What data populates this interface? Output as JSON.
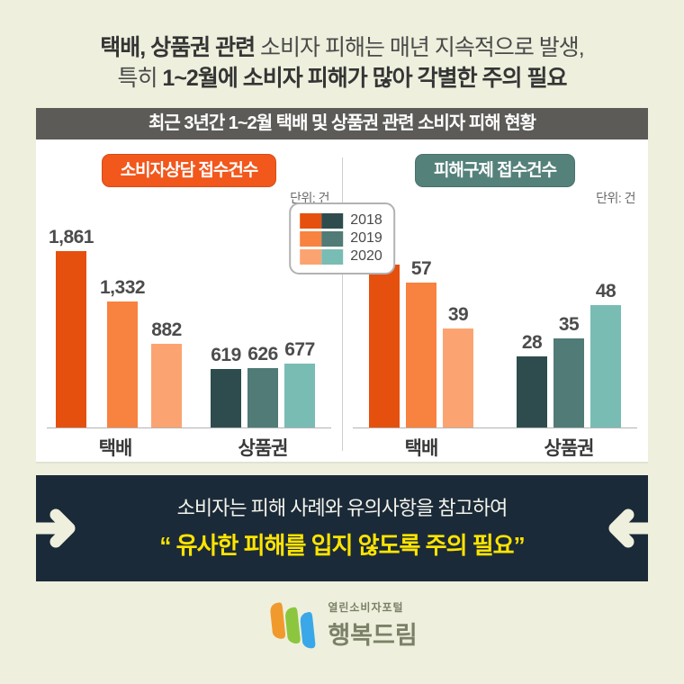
{
  "header": {
    "line1_bold": "택배, 상품권 관련",
    "line1_rest": " 소비자 피해는 매년 지속적으로 발생,",
    "line2_light": "특히 ",
    "line2_bold": "1~2월에 소비자 피해가 많아 각별한 주의 필요"
  },
  "panel": {
    "title": "최근 3년간 1~2월 택배 및 상품권 관련 소비자 피해 현황"
  },
  "chart_data": [
    {
      "type": "bar",
      "title": "소비자상담 접수건수",
      "unit_label": "단위: 건",
      "categories": [
        "택배",
        "상품권"
      ],
      "series": [
        {
          "name": "2018",
          "values": [
            1861,
            619
          ]
        },
        {
          "name": "2019",
          "values": [
            1332,
            626
          ]
        },
        {
          "name": "2020",
          "values": [
            882,
            677
          ]
        }
      ],
      "ylim": [
        0,
        1861
      ],
      "grid": false,
      "value_labels_shown": true
    },
    {
      "type": "bar",
      "title": "피해구제 접수건수",
      "unit_label": "단위: 건",
      "categories": [
        "택배",
        "상품권"
      ],
      "series": [
        {
          "name": "2018",
          "values": [
            64,
            28
          ]
        },
        {
          "name": "2019",
          "values": [
            57,
            35
          ]
        },
        {
          "name": "2020",
          "values": [
            39,
            48
          ]
        }
      ],
      "ylim": [
        0,
        64
      ],
      "grid": false,
      "value_labels_shown": true
    }
  ],
  "legend": {
    "position": "top-center-between-charts",
    "years": [
      "2018",
      "2019",
      "2020"
    ]
  },
  "colors": {
    "page_bg": "#eef0dd",
    "panel_header_bg": "#5c5b57",
    "badge_left": "#f2571c",
    "badge_right": "#55817b",
    "parcel_series": [
      "#e5500e",
      "#f8823f",
      "#fba472"
    ],
    "gift_series": [
      "#2e4c4d",
      "#507b77",
      "#79bcb4"
    ],
    "banner_bg": "#1b2a38",
    "banner_highlight": "#ffe400",
    "logo_orange": "#f09a2e",
    "logo_green": "#8cc63f",
    "logo_blue": "#3aa8e8"
  },
  "banner": {
    "line1": "소비자는 피해 사례와 유의사항을 참고하여",
    "line2": "“ 유사한 피해를 입지 않도록 주의 필요”"
  },
  "logo": {
    "subtitle": "열린소비자포털",
    "name": "행복드림"
  }
}
